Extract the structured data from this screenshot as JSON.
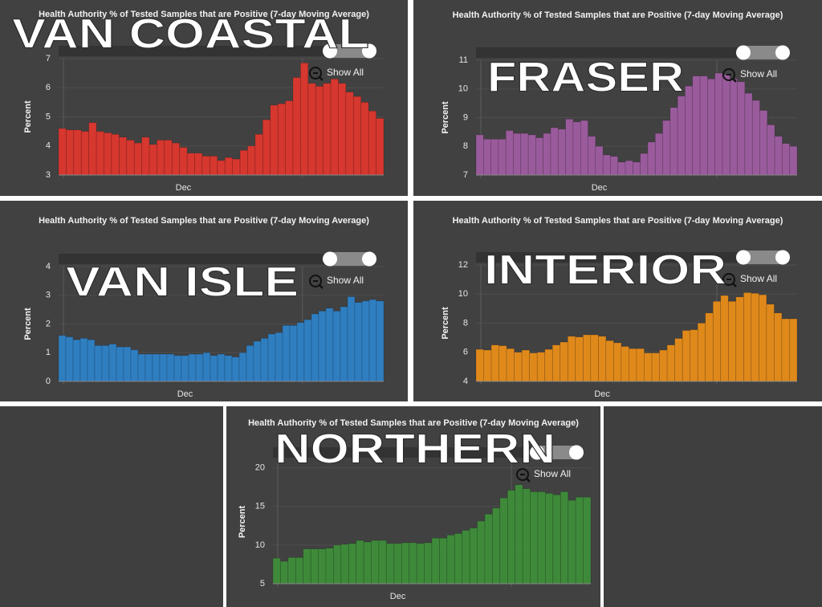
{
  "chart_data": [
    {
      "type": "bar",
      "title": "Health Authority % of Tested Samples that are Positive (7-day Moving Average)",
      "annotation": "VAN COASTAL",
      "button": "Show All",
      "y_label": "Percent",
      "categories": [
        null,
        null,
        null,
        null,
        null,
        null,
        null,
        null,
        null,
        null,
        null,
        null,
        null,
        null,
        null,
        null,
        "Dec",
        null,
        null,
        null,
        null,
        null,
        null,
        null,
        null,
        null,
        null,
        null,
        null,
        null,
        null,
        null,
        null,
        null,
        null,
        null,
        null,
        null,
        null,
        null,
        null,
        null,
        null
      ],
      "values": [
        4.6,
        4.55,
        4.55,
        4.5,
        4.8,
        4.5,
        4.45,
        4.4,
        4.3,
        4.2,
        4.1,
        4.3,
        4.05,
        4.2,
        4.2,
        4.1,
        3.95,
        3.75,
        3.75,
        3.65,
        3.65,
        3.5,
        3.6,
        3.55,
        3.85,
        4.0,
        4.4,
        4.9,
        5.4,
        5.45,
        5.55,
        6.35,
        6.85,
        6.15,
        6.05,
        6.15,
        6.3,
        6.15,
        5.85,
        5.7,
        5.5,
        5.2,
        4.95
      ],
      "color": "#d6372e",
      "ylim": [
        3,
        7
      ],
      "yticks": [
        3,
        4,
        5,
        6,
        7
      ],
      "grid": true
    },
    {
      "type": "bar",
      "title": "Health Authority % of Tested Samples that are Positive (7-day Moving Average)",
      "annotation": "FRASER",
      "button": "Show All",
      "y_label": "Percent",
      "categories": [
        null,
        null,
        null,
        null,
        null,
        null,
        null,
        null,
        null,
        null,
        null,
        null,
        null,
        null,
        null,
        null,
        "Dec",
        null,
        null,
        null,
        null,
        null,
        null,
        null,
        null,
        null,
        null,
        null,
        null,
        null,
        null,
        null,
        null,
        null,
        null,
        null,
        null,
        null,
        null,
        null,
        null,
        null,
        null
      ],
      "values": [
        8.4,
        8.25,
        8.25,
        8.25,
        8.55,
        8.45,
        8.45,
        8.4,
        8.3,
        8.45,
        8.65,
        8.6,
        8.95,
        8.85,
        8.9,
        8.35,
        8.0,
        7.7,
        7.65,
        7.45,
        7.5,
        7.45,
        7.75,
        8.15,
        8.45,
        8.9,
        9.35,
        9.75,
        10.1,
        10.45,
        10.45,
        10.35,
        10.55,
        10.5,
        10.35,
        10.25,
        9.85,
        9.6,
        9.25,
        8.75,
        8.35,
        8.1,
        8.0
      ],
      "color": "#9a5b9c",
      "ylim": [
        7,
        11
      ],
      "yticks": [
        7,
        8,
        9,
        10,
        11
      ],
      "grid": true
    },
    {
      "type": "bar",
      "title": "Health Authority % of Tested Samples that are Positive (7-day Moving Average)",
      "annotation": "VAN ISLE",
      "button": "Show All",
      "y_label": "Percent",
      "categories": [
        null,
        null,
        null,
        null,
        null,
        null,
        null,
        null,
        null,
        null,
        null,
        null,
        null,
        null,
        null,
        null,
        null,
        "Dec",
        null,
        null,
        null,
        null,
        null,
        null,
        null,
        null,
        null,
        null,
        null,
        null,
        null,
        null,
        null,
        null,
        null,
        null,
        null,
        null,
        null,
        null,
        null,
        null,
        null,
        null,
        null
      ],
      "values": [
        1.6,
        1.55,
        1.45,
        1.5,
        1.45,
        1.25,
        1.25,
        1.3,
        1.2,
        1.2,
        1.1,
        0.95,
        0.95,
        0.95,
        0.95,
        0.95,
        0.9,
        0.9,
        0.95,
        0.95,
        1.0,
        0.9,
        0.95,
        0.9,
        0.85,
        1.0,
        1.25,
        1.4,
        1.5,
        1.65,
        1.7,
        1.95,
        1.95,
        2.05,
        2.15,
        2.35,
        2.45,
        2.55,
        2.45,
        2.6,
        2.95,
        2.75,
        2.8,
        2.85,
        2.8
      ],
      "color": "#2f7ec0",
      "ylim": [
        0,
        4
      ],
      "yticks": [
        0,
        1,
        2,
        3,
        4
      ],
      "grid": true
    },
    {
      "type": "bar",
      "title": "Health Authority % of Tested Samples that are Positive (7-day Moving Average)",
      "annotation": "INTERIOR",
      "button": "Show All",
      "y_label": "Percent",
      "categories": [
        null,
        null,
        null,
        null,
        null,
        null,
        null,
        null,
        null,
        null,
        null,
        null,
        null,
        null,
        null,
        null,
        "Dec",
        null,
        null,
        null,
        null,
        null,
        null,
        null,
        null,
        null,
        null,
        null,
        null,
        null,
        null,
        null,
        null,
        null,
        null,
        null,
        null,
        null,
        null,
        null,
        null,
        null
      ],
      "values": [
        6.2,
        6.15,
        6.5,
        6.45,
        6.25,
        6.0,
        6.15,
        5.95,
        6.0,
        6.2,
        6.5,
        6.7,
        7.1,
        7.05,
        7.2,
        7.2,
        7.1,
        6.8,
        6.65,
        6.4,
        6.25,
        6.25,
        5.95,
        5.95,
        6.15,
        6.5,
        6.95,
        7.5,
        7.55,
        8.0,
        8.7,
        9.5,
        9.9,
        9.5,
        9.8,
        10.1,
        10.05,
        9.95,
        9.3,
        8.7,
        8.3,
        8.3
      ],
      "color": "#e0891b",
      "ylim": [
        4,
        12
      ],
      "yticks": [
        4,
        6,
        8,
        10,
        12
      ],
      "grid": true
    },
    {
      "type": "bar",
      "title": "Health Authority % of Tested Samples that are Positive (7-day Moving Average)",
      "annotation": "NORTHERN",
      "button": "Show All",
      "y_label": "Percent",
      "categories": [
        null,
        null,
        null,
        null,
        null,
        null,
        null,
        null,
        null,
        null,
        null,
        null,
        null,
        null,
        null,
        null,
        "Dec",
        null,
        null,
        null,
        null,
        null,
        null,
        null,
        null,
        null,
        null,
        null,
        null,
        null,
        null,
        null,
        null,
        null,
        null,
        null,
        null,
        null,
        null,
        null,
        null,
        null
      ],
      "values": [
        8.3,
        7.9,
        8.4,
        8.4,
        9.5,
        9.5,
        9.5,
        9.6,
        10.0,
        10.1,
        10.2,
        10.6,
        10.4,
        10.6,
        10.6,
        10.2,
        10.2,
        10.3,
        10.3,
        10.2,
        10.3,
        10.9,
        10.9,
        11.3,
        11.5,
        11.9,
        12.2,
        13.1,
        14.0,
        14.8,
        16.1,
        17.1,
        17.8,
        17.3,
        16.9,
        16.9,
        16.7,
        16.5,
        16.9,
        15.8,
        16.2,
        16.2
      ],
      "color": "#3e8a3a",
      "ylim": [
        5,
        21
      ],
      "yticks": [
        5,
        10,
        15,
        20
      ],
      "grid": true
    }
  ]
}
